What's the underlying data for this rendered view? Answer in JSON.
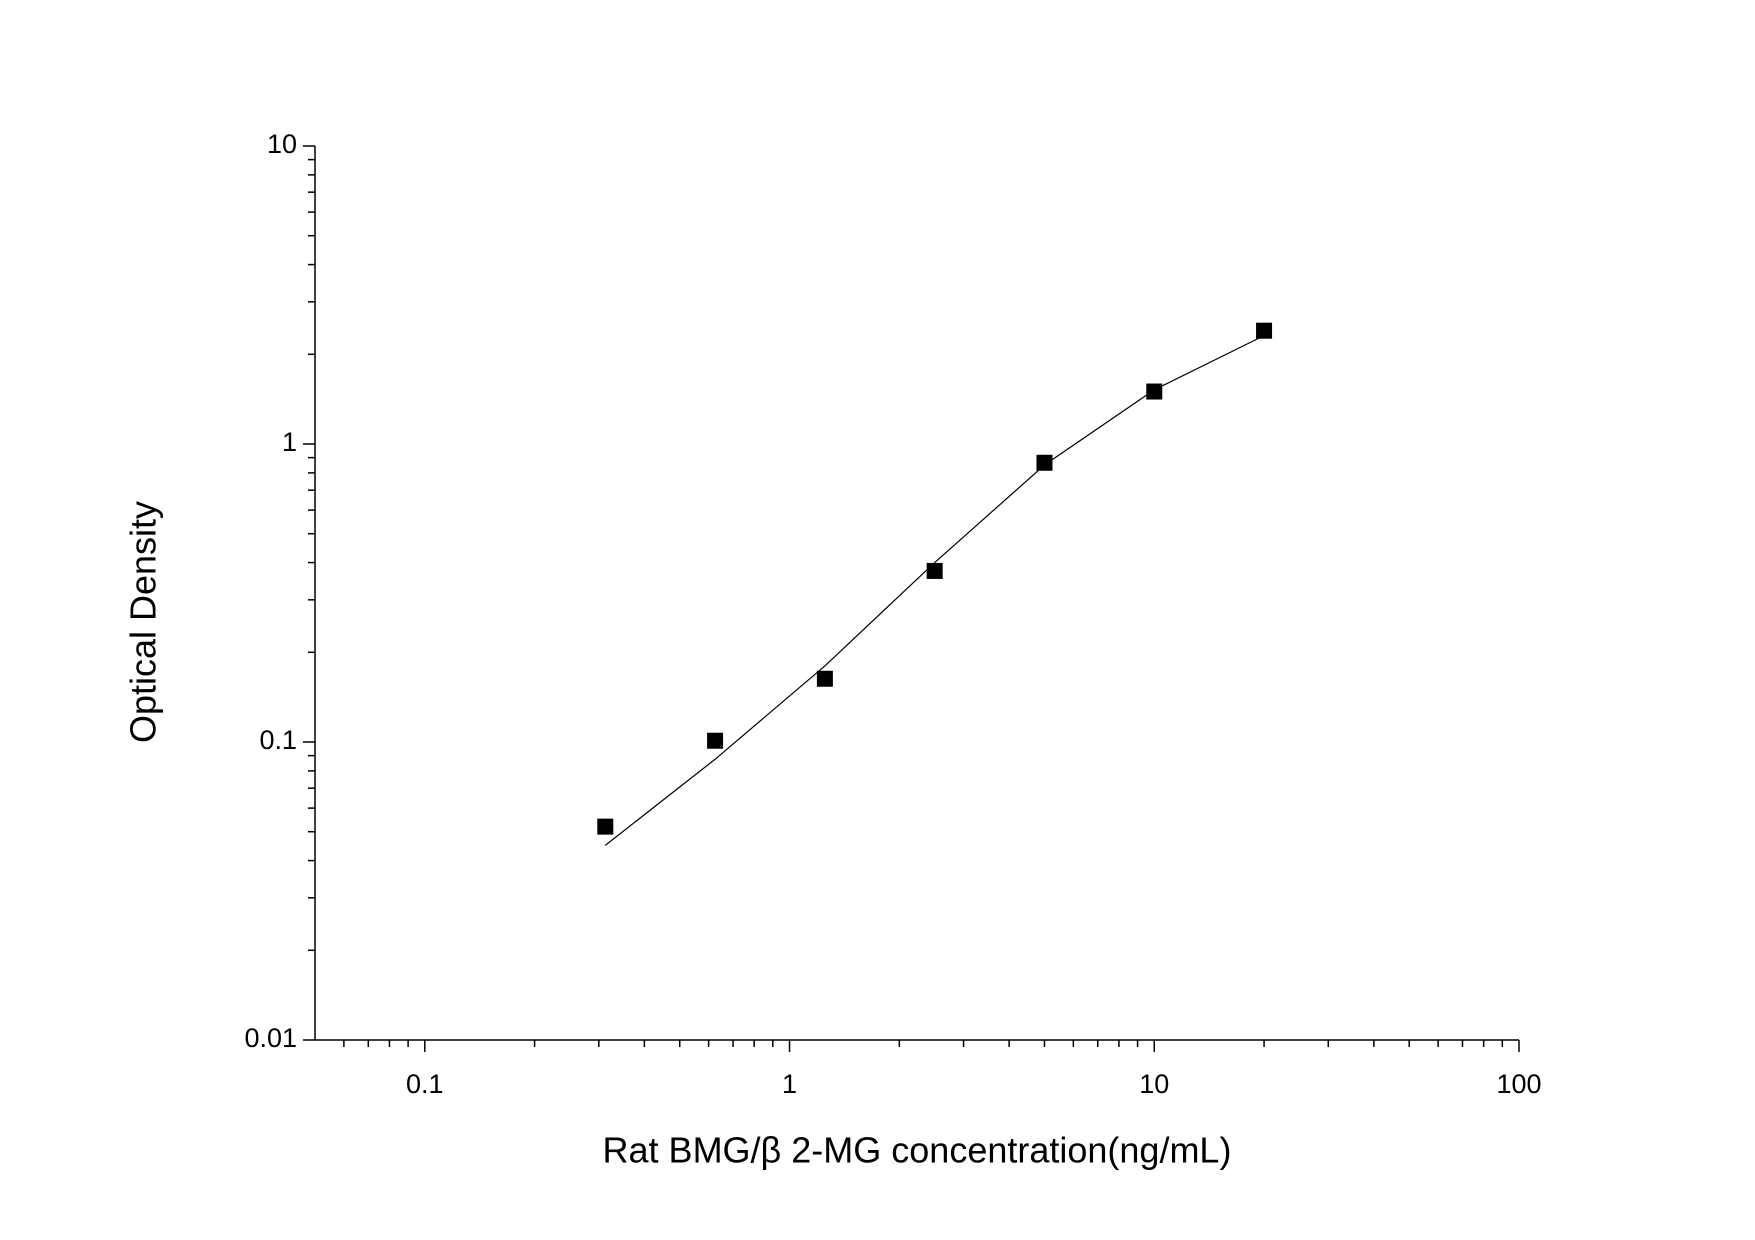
{
  "chart_data": {
    "type": "scatter",
    "x_label": "Rat BMG/β 2-MG concentration(ng/mL)",
    "y_label": "Optical Density",
    "x": [
      0.3125,
      0.625,
      1.25,
      2.5,
      5,
      10,
      20
    ],
    "series": [
      {
        "values": [
          0.052,
          0.101,
          0.163,
          0.375,
          0.865,
          1.5,
          2.4
        ],
        "color": "#000000",
        "marker": "square"
      },
      {
        "values": [
          0.045,
          0.0875,
          0.18,
          0.4,
          0.85,
          1.52,
          2.31
        ],
        "color": "#000000",
        "marker": "line"
      }
    ],
    "xscale": "log",
    "yscale": "log",
    "xlim": [
      0.05,
      100
    ],
    "ylim": [
      0.01,
      10
    ],
    "xticks": [
      0.1,
      1,
      10,
      100
    ],
    "yticks": [
      0.01,
      0.1,
      1,
      10
    ],
    "xminorticks": [
      0.06,
      0.07,
      0.08,
      0.09,
      0.2,
      0.3,
      0.4,
      0.5,
      0.6,
      0.7,
      0.8,
      0.9,
      2,
      3,
      4,
      5,
      6,
      7,
      8,
      9,
      20,
      30,
      40,
      50,
      60,
      70,
      80,
      90
    ],
    "yminorticks": [
      0.02,
      0.03,
      0.04,
      0.05,
      0.06,
      0.07,
      0.08,
      0.09,
      0.2,
      0.3,
      0.4,
      0.5,
      0.6,
      0.7,
      0.8,
      0.9,
      2,
      3,
      4,
      5,
      6,
      7,
      8,
      9
    ],
    "grid": false
  }
}
